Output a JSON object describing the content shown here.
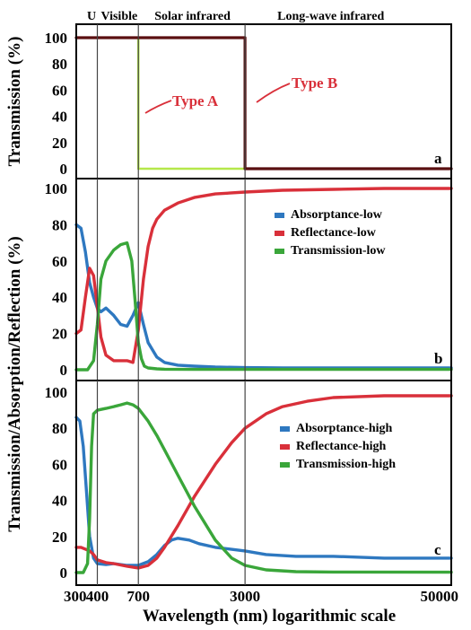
{
  "chart_data": [
    {
      "panel": "a",
      "type": "line",
      "region_labels": [
        "U",
        "Visible",
        "Solar infrared",
        "Long-wave infrared"
      ],
      "ylabel": "Transmission (%)",
      "ylim": [
        -5,
        105
      ],
      "yticks": [
        0,
        20,
        40,
        60,
        80,
        100
      ],
      "x_scale": "log",
      "boundaries_nm": [
        400,
        700,
        3000
      ],
      "annotations": [
        {
          "text": "Type A",
          "color": "#d9303a"
        },
        {
          "text": "Type B",
          "color": "#d9303a"
        }
      ],
      "series": [
        {
          "name": "Type A",
          "color": "#b5e84a",
          "x": [
            300,
            700,
            700,
            50000
          ],
          "y": [
            100,
            100,
            0,
            0
          ]
        },
        {
          "name": "Type B",
          "color": "#5a0f10",
          "x": [
            300,
            3000,
            3000,
            50000
          ],
          "y": [
            100,
            100,
            0,
            0
          ]
        }
      ]
    },
    {
      "panel": "b",
      "type": "line",
      "ylim": [
        -2,
        105
      ],
      "yticks": [
        0,
        20,
        40,
        60,
        80,
        100
      ],
      "x_scale": "log",
      "legend_position": "right",
      "series": [
        {
          "name": "Absorptance-low",
          "color": "#2e78c0",
          "x": [
            300,
            320,
            340,
            360,
            380,
            400,
            420,
            450,
            500,
            550,
            600,
            650,
            700,
            750,
            800,
            900,
            1000,
            1200,
            1500,
            2000,
            3000,
            5000,
            10000,
            20000,
            50000
          ],
          "y": [
            80,
            78,
            65,
            48,
            40,
            34,
            32,
            34,
            30,
            25,
            24,
            30,
            37,
            25,
            15,
            7,
            4,
            2.5,
            2,
            1.5,
            1.2,
            1,
            1,
            1,
            1
          ]
        },
        {
          "name": "Reflectance-low",
          "color": "#d9303a",
          "x": [
            300,
            320,
            340,
            360,
            380,
            400,
            420,
            450,
            500,
            550,
            600,
            650,
            700,
            750,
            800,
            850,
            900,
            1000,
            1200,
            1500,
            2000,
            3000,
            5000,
            10000,
            20000,
            50000
          ],
          "y": [
            20,
            22,
            40,
            56,
            52,
            35,
            18,
            8,
            5,
            5,
            5,
            4,
            22,
            50,
            68,
            78,
            83,
            88,
            92,
            95,
            97,
            98,
            99,
            99.5,
            100,
            100
          ]
        },
        {
          "name": "Transmission-low",
          "color": "#3aa63a",
          "x": [
            300,
            350,
            380,
            400,
            420,
            450,
            500,
            550,
            600,
            640,
            670,
            700,
            730,
            760,
            800,
            900,
            1000,
            1500,
            3000,
            50000
          ],
          "y": [
            0,
            0,
            5,
            25,
            50,
            60,
            66,
            69,
            70,
            60,
            38,
            15,
            6,
            2,
            1,
            0.5,
            0.3,
            0.2,
            0.2,
            0.2
          ]
        }
      ]
    },
    {
      "panel": "c",
      "type": "line",
      "xlabel": "Wavelength (nm) logarithmic scale",
      "ylim": [
        -2,
        104
      ],
      "yticks": [
        0,
        20,
        40,
        60,
        80,
        100
      ],
      "x_scale": "log",
      "xlim": [
        300,
        50000
      ],
      "xticks": [
        300,
        400,
        700,
        3000,
        50000
      ],
      "shared_ylabel": "Transmission/Absorption/Reflection (%)",
      "legend_position": "right",
      "series": [
        {
          "name": "Absorptance-high",
          "color": "#2e78c0",
          "x": [
            300,
            315,
            330,
            345,
            360,
            380,
            400,
            450,
            500,
            600,
            700,
            800,
            900,
            1000,
            1100,
            1200,
            1400,
            1600,
            2000,
            3000,
            4000,
            6000,
            10000,
            20000,
            50000
          ],
          "y": [
            86,
            84,
            70,
            45,
            20,
            8,
            5,
            4.5,
            5,
            4,
            4,
            6,
            10,
            15,
            18,
            19,
            18,
            16,
            14,
            12,
            10,
            9,
            9,
            8,
            8
          ]
        },
        {
          "name": "Reflectance-high",
          "color": "#d9303a",
          "x": [
            300,
            320,
            340,
            360,
            380,
            400,
            450,
            500,
            600,
            700,
            800,
            900,
            1000,
            1200,
            1500,
            2000,
            2500,
            3000,
            4000,
            5000,
            7000,
            10000,
            20000,
            50000
          ],
          "y": [
            14,
            14,
            13,
            12,
            10,
            7,
            5.5,
            5,
            3.5,
            2.5,
            4,
            8,
            14,
            26,
            42,
            60,
            72,
            80,
            88,
            92,
            95,
            97,
            98,
            98
          ]
        },
        {
          "name": "Transmission-high",
          "color": "#3aa63a",
          "x": [
            300,
            330,
            350,
            360,
            370,
            380,
            400,
            450,
            500,
            550,
            600,
            650,
            700,
            800,
            900,
            1000,
            1200,
            1500,
            2000,
            2500,
            3000,
            4000,
            6000,
            10000,
            50000
          ],
          "y": [
            0,
            0,
            5,
            30,
            70,
            88,
            90,
            91,
            92,
            93,
            94,
            93,
            91,
            84,
            76,
            68,
            54,
            37,
            18,
            8,
            4,
            1.5,
            0.5,
            0.3,
            0.2
          ]
        }
      ]
    }
  ]
}
